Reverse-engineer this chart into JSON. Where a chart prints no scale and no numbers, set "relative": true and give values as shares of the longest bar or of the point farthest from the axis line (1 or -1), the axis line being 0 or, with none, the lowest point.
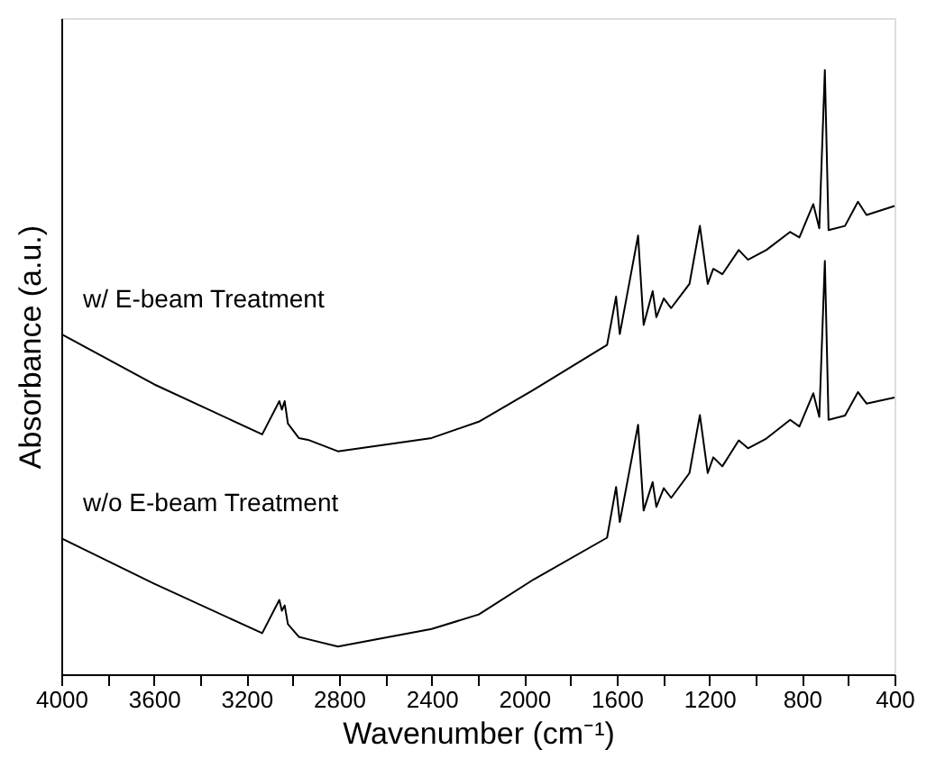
{
  "chart_data": {
    "type": "line",
    "xlabel": "Wavenumber (cm⁻¹)",
    "ylabel": "Absorbance (a.u.)",
    "relative": true,
    "tick_labels": "x",
    "legend": false,
    "grid": false,
    "marker": "none",
    "line_style": "solid",
    "xlim": [
      4000,
      400
    ],
    "xticks": [
      4000,
      {
        "value": 3800,
        "label": null
      },
      3600,
      {
        "value": 3400,
        "label": null
      },
      3200,
      {
        "value": 3000,
        "label": null
      },
      2800,
      {
        "value": 2600,
        "label": null
      },
      2400,
      {
        "value": 2200,
        "label": null
      },
      2000,
      {
        "value": 1800,
        "label": null
      },
      1600,
      {
        "value": 1400,
        "label": null
      },
      1200,
      {
        "value": 1000,
        "label": null
      },
      800,
      {
        "value": 600,
        "label": null
      },
      400
    ],
    "x": [
      4000,
      3600,
      3132,
      3058,
      3047,
      3035,
      3021,
      2974,
      2934,
      2805,
      2400,
      2196,
      1959,
      1642,
      1603,
      1587,
      1508,
      1484,
      1445,
      1429,
      1397,
      1365,
      1286,
      1241,
      1207,
      1183,
      1144,
      1073,
      1033,
      954,
      851,
      811,
      751,
      725,
      701,
      685,
      614,
      558,
      521,
      400
    ],
    "series": [
      {
        "name": "w/ E-beam Treatment",
        "color": "#000000",
        "values": [
          0.563,
          0.48,
          0.397,
          0.452,
          0.438,
          0.452,
          0.415,
          0.391,
          0.388,
          0.369,
          0.391,
          0.418,
          0.471,
          0.545,
          0.625,
          0.563,
          0.726,
          0.578,
          0.634,
          0.591,
          0.622,
          0.606,
          0.646,
          0.742,
          0.646,
          0.671,
          0.662,
          0.702,
          0.686,
          0.702,
          0.732,
          0.723,
          0.778,
          0.738,
          1.0,
          0.735,
          0.742,
          0.782,
          0.76,
          0.775
        ]
      },
      {
        "name": "w/o E-beam Treatment",
        "color": "#000000",
        "values": [
          0.225,
          0.15,
          0.068,
          0.123,
          0.105,
          0.114,
          0.083,
          0.062,
          0.058,
          0.046,
          0.075,
          0.099,
          0.157,
          0.226,
          0.31,
          0.252,
          0.413,
          0.271,
          0.318,
          0.277,
          0.308,
          0.292,
          0.333,
          0.429,
          0.333,
          0.359,
          0.344,
          0.387,
          0.374,
          0.39,
          0.421,
          0.41,
          0.465,
          0.426,
          0.684,
          0.421,
          0.428,
          0.467,
          0.448,
          0.458
        ]
      }
    ]
  }
}
